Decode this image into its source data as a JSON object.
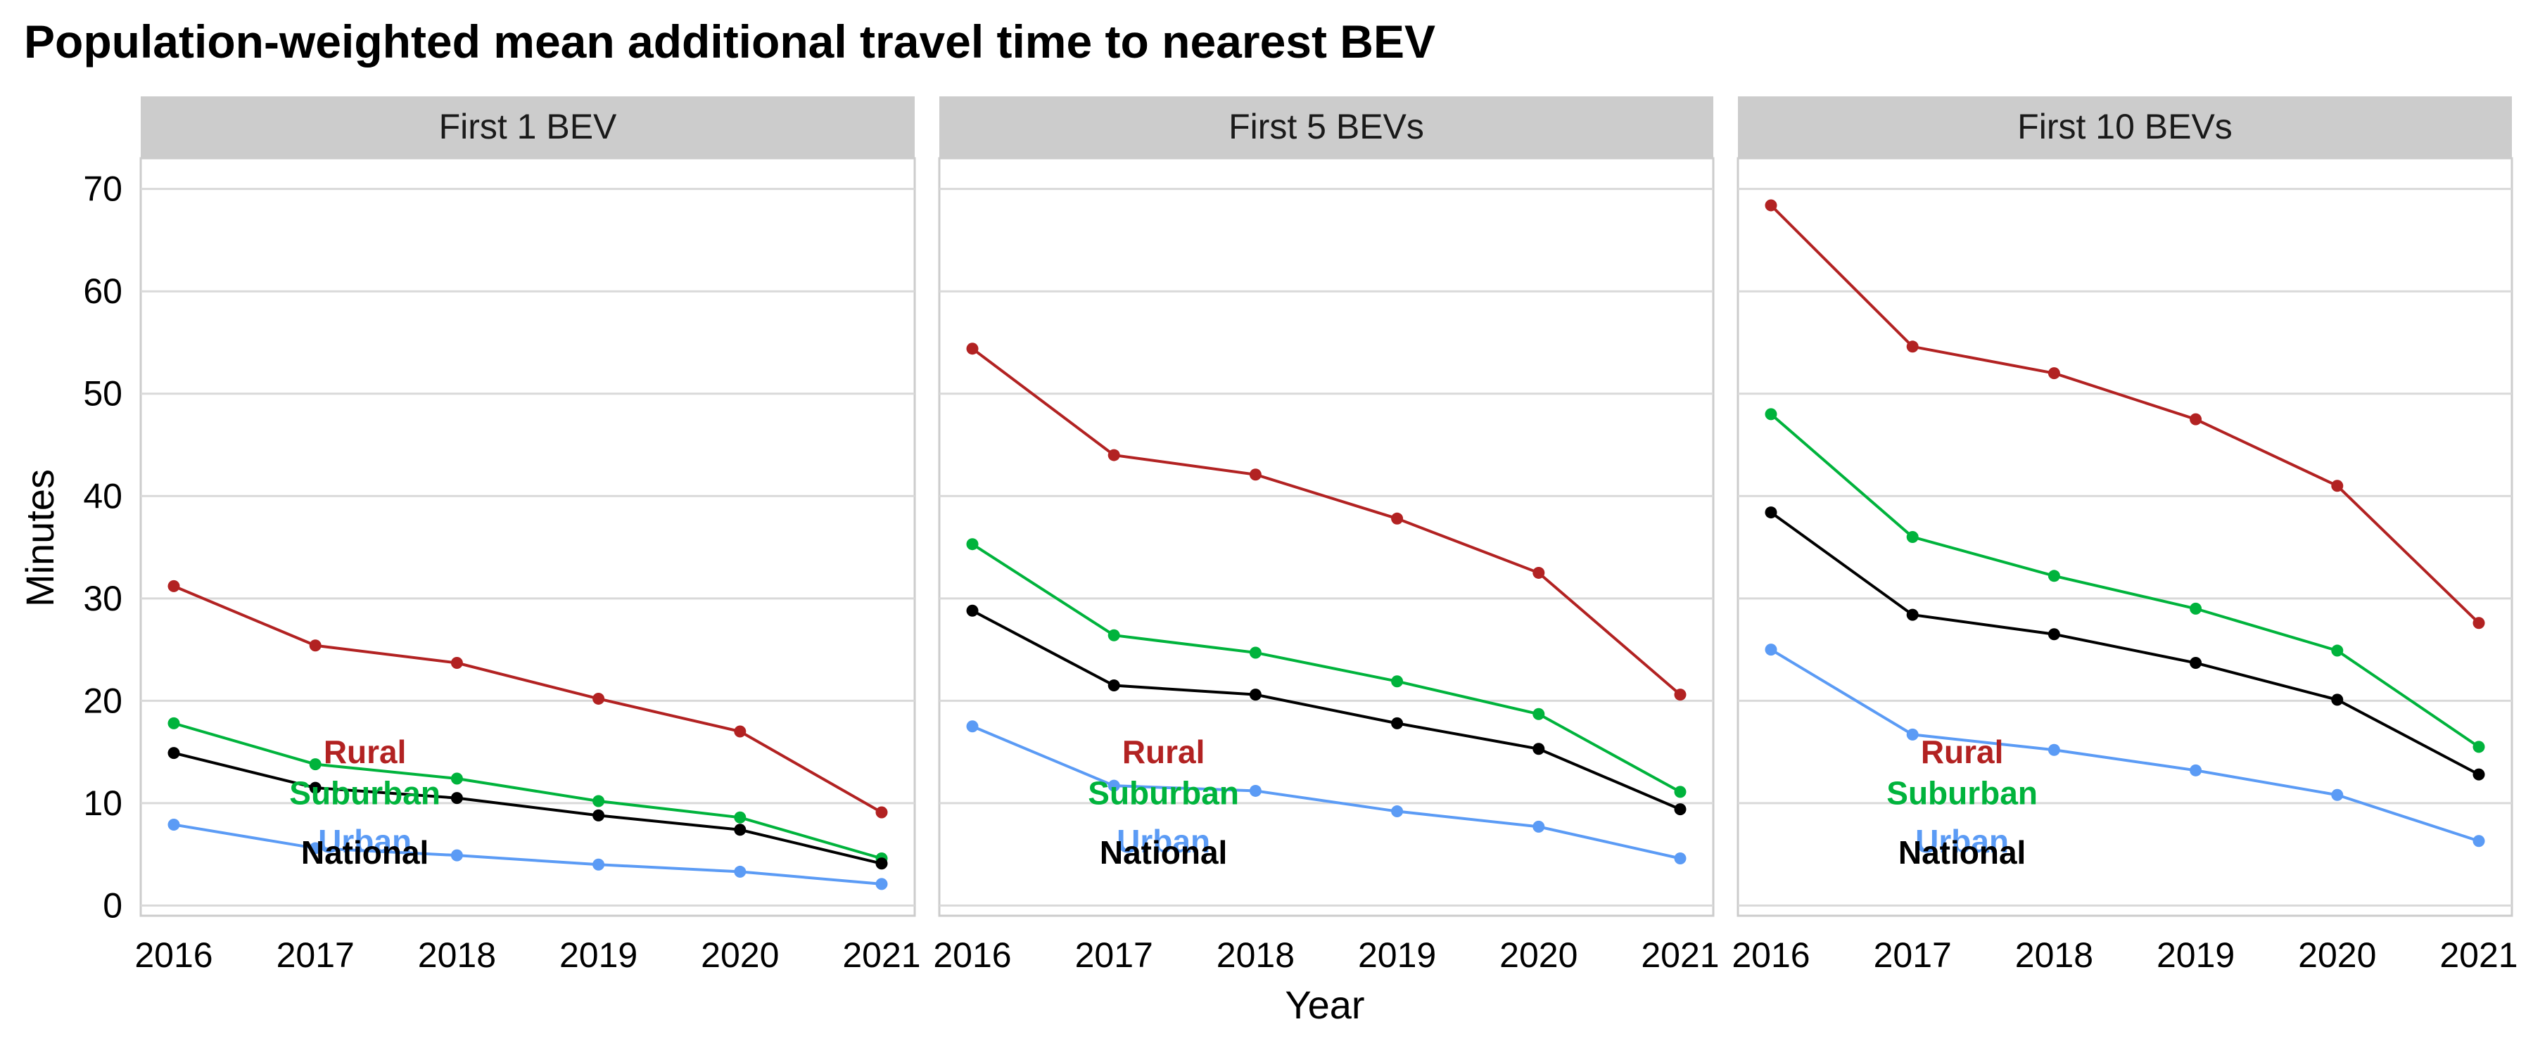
{
  "chart_data": {
    "type": "line",
    "title": "Population-weighted mean additional travel time to nearest BEV",
    "xlabel": "Year",
    "ylabel": "Minutes",
    "ylim": [
      -1,
      73
    ],
    "yticks": [
      0,
      10,
      20,
      30,
      40,
      50,
      60,
      70
    ],
    "x": [
      "2016",
      "2017",
      "2018",
      "2019",
      "2020",
      "2021"
    ],
    "grid": true,
    "legend": "none",
    "colors": {
      "Rural": "#b22222",
      "Suburban": "#00b33c",
      "Urban": "#5b9bf5",
      "National": "#000000"
    },
    "panels": [
      {
        "title": "First 1 BEV",
        "series": [
          {
            "name": "Rural",
            "values": [
              31.2,
              25.4,
              23.7,
              20.2,
              17.0,
              9.1
            ]
          },
          {
            "name": "Suburban",
            "values": [
              17.8,
              13.8,
              12.4,
              10.2,
              8.6,
              4.6
            ]
          },
          {
            "name": "National",
            "values": [
              14.9,
              11.5,
              10.5,
              8.8,
              7.4,
              4.1
            ]
          },
          {
            "name": "Urban",
            "values": [
              7.9,
              5.6,
              4.9,
              4.0,
              3.3,
              2.1
            ]
          }
        ]
      },
      {
        "title": "First 5 BEVs",
        "series": [
          {
            "name": "Rural",
            "values": [
              54.4,
              44.0,
              42.1,
              37.8,
              32.5,
              20.6
            ]
          },
          {
            "name": "Suburban",
            "values": [
              35.3,
              26.4,
              24.7,
              21.9,
              18.7,
              11.1
            ]
          },
          {
            "name": "National",
            "values": [
              28.8,
              21.5,
              20.6,
              17.8,
              15.3,
              9.4
            ]
          },
          {
            "name": "Urban",
            "values": [
              17.5,
              11.7,
              11.2,
              9.2,
              7.7,
              4.6
            ]
          }
        ]
      },
      {
        "title": "First 10 BEVs",
        "series": [
          {
            "name": "Rural",
            "values": [
              68.4,
              54.6,
              52.0,
              47.5,
              41.0,
              27.6
            ]
          },
          {
            "name": "Suburban",
            "values": [
              48.0,
              36.0,
              32.2,
              29.0,
              24.9,
              15.5
            ]
          },
          {
            "name": "National",
            "values": [
              38.4,
              28.4,
              26.5,
              23.7,
              20.1,
              12.8
            ]
          },
          {
            "name": "Urban",
            "values": [
              25.0,
              16.7,
              15.2,
              13.2,
              10.8,
              6.3
            ]
          }
        ]
      }
    ],
    "annotations": [
      {
        "text": "Rural",
        "series": "Rural",
        "x": 2017.35,
        "y": 15
      },
      {
        "text": "Suburban",
        "series": "Suburban",
        "x": 2017.35,
        "y": 11
      },
      {
        "text": "Urban",
        "series": "Urban",
        "x": 2017.35,
        "y": 6.3
      },
      {
        "text": "National",
        "series": "National",
        "x": 2017.35,
        "y": 5.2
      }
    ]
  }
}
